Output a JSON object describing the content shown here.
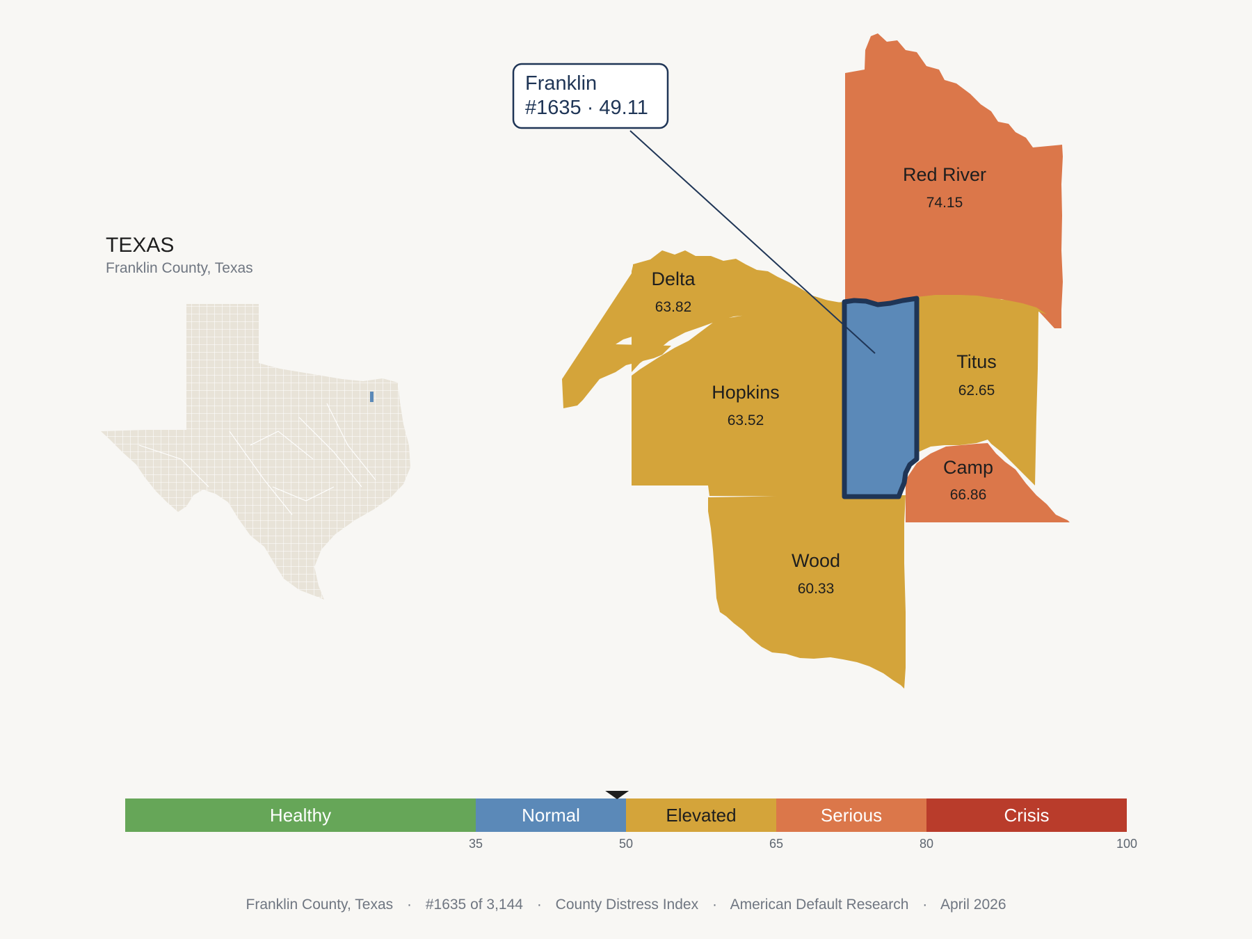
{
  "state": {
    "title": "TEXAS",
    "subtitle": "Franklin County, Texas"
  },
  "callout": {
    "name": "Franklin",
    "detail": "#1635 · 49.11"
  },
  "counties": {
    "red_river": {
      "name": "Red River",
      "value": "74.15",
      "color": "#db774a"
    },
    "delta": {
      "name": "Delta",
      "value": "63.82",
      "color": "#d4a43a"
    },
    "hopkins": {
      "name": "Hopkins",
      "value": "63.52",
      "color": "#d4a43a"
    },
    "titus": {
      "name": "Titus",
      "value": "62.65",
      "color": "#d4a43a"
    },
    "camp": {
      "name": "Camp",
      "value": "66.86",
      "color": "#db774a"
    },
    "wood": {
      "name": "Wood",
      "value": "60.33",
      "color": "#d4a43a"
    },
    "franklin": {
      "name": "Franklin",
      "value": "49.11",
      "color": "#5b89b8"
    }
  },
  "scale": {
    "domain": [
      0,
      100
    ],
    "marker_value": 49.11,
    "bands": [
      {
        "label": "Healthy",
        "from": 0,
        "to": 35,
        "color": "#66a658",
        "text_color": "#ffffff"
      },
      {
        "label": "Normal",
        "from": 35,
        "to": 50,
        "color": "#5b89b8",
        "text_color": "#ffffff"
      },
      {
        "label": "Elevated",
        "from": 50,
        "to": 65,
        "color": "#d4a43a",
        "text_color": "#1e1e1e"
      },
      {
        "label": "Serious",
        "from": 65,
        "to": 80,
        "color": "#db774a",
        "text_color": "#ffffff"
      },
      {
        "label": "Crisis",
        "from": 80,
        "to": 100,
        "color": "#b93c2b",
        "text_color": "#ffffff"
      }
    ],
    "ticks": [
      "35",
      "50",
      "65",
      "80",
      "100"
    ]
  },
  "footer": {
    "county": "Franklin County, Texas",
    "rank": "#1635 of 3,144",
    "index": "County Distress Index",
    "source": "American Default Research",
    "date": "April 2026",
    "separator": "·"
  },
  "colors": {
    "background": "#f8f7f4",
    "inset_fill": "#e8e3d8",
    "highlight": "#1f3556"
  }
}
